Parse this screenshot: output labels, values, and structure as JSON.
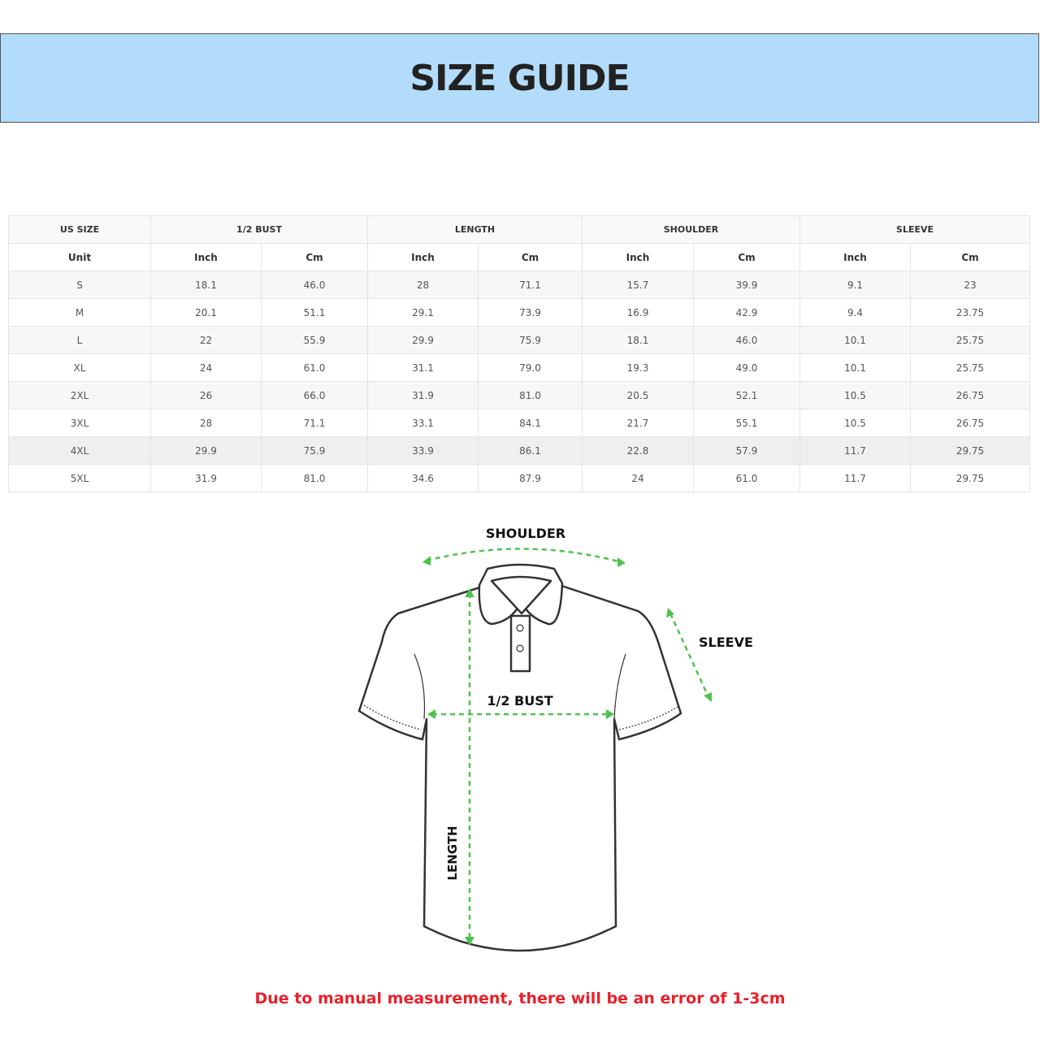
{
  "title": "SIZE GUIDE",
  "table": {
    "groups": [
      "US SIZE",
      "1/2 BUST",
      "LENGTH",
      "SHOULDER",
      "SLEEVE"
    ],
    "units": [
      "Unit",
      "Inch",
      "Cm",
      "Inch",
      "Cm",
      "Inch",
      "Cm",
      "Inch",
      "Cm"
    ],
    "rows": [
      [
        "S",
        "18.1",
        "46.0",
        "28",
        "71.1",
        "15.7",
        "39.9",
        "9.1",
        "23"
      ],
      [
        "M",
        "20.1",
        "51.1",
        "29.1",
        "73.9",
        "16.9",
        "42.9",
        "9.4",
        "23.75"
      ],
      [
        "L",
        "22",
        "55.9",
        "29.9",
        "75.9",
        "18.1",
        "46.0",
        "10.1",
        "25.75"
      ],
      [
        "XL",
        "24",
        "61.0",
        "31.1",
        "79.0",
        "19.3",
        "49.0",
        "10.1",
        "25.75"
      ],
      [
        "2XL",
        "26",
        "66.0",
        "31.9",
        "81.0",
        "20.5",
        "52.1",
        "10.5",
        "26.75"
      ],
      [
        "3XL",
        "28",
        "71.1",
        "33.1",
        "84.1",
        "21.7",
        "55.1",
        "10.5",
        "26.75"
      ],
      [
        "4XL",
        "29.9",
        "75.9",
        "33.9",
        "86.1",
        "22.8",
        "57.9",
        "11.7",
        "29.75"
      ],
      [
        "5XL",
        "31.9",
        "81.0",
        "34.6",
        "87.9",
        "24",
        "61.0",
        "11.7",
        "29.75"
      ]
    ]
  },
  "diagram": {
    "shoulder_label": "SHOULDER",
    "sleeve_label": "SLEEVE",
    "bust_label": "1/2 BUST",
    "length_label": "LENGTH",
    "arrow_color": "#4cc44c"
  },
  "note": "Due to manual measurement, there will be an error of 1-3cm"
}
